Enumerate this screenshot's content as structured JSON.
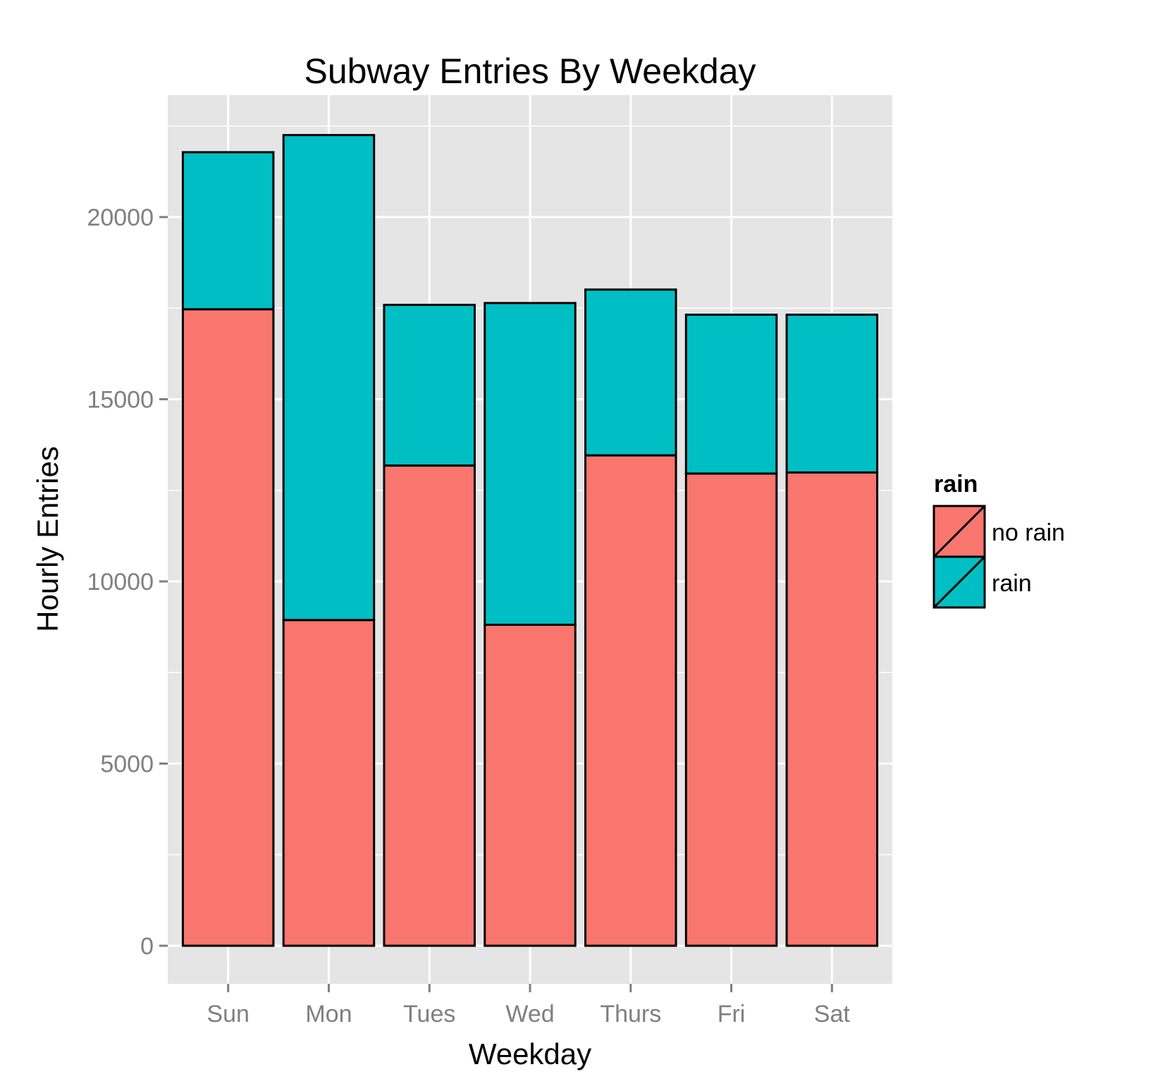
{
  "chart_data": {
    "type": "bar",
    "stacked": true,
    "title": "Subway Entries By Weekday",
    "xlabel": "Weekday",
    "ylabel": "Hourly Entries",
    "categories": [
      "Sun",
      "Mon",
      "Tues",
      "Wed",
      "Thurs",
      "Fri",
      "Sat"
    ],
    "series": [
      {
        "name": "no rain",
        "color": "#F8766D",
        "values": [
          17470,
          8940,
          13180,
          8810,
          13460,
          12960,
          12990
        ]
      },
      {
        "name": "rain",
        "color": "#00BFC4",
        "values": [
          4310,
          13310,
          4410,
          8830,
          4550,
          4360,
          4330
        ]
      }
    ],
    "ylim": [
      -1100,
      23300
    ],
    "yticks": [
      0,
      5000,
      10000,
      15000,
      20000
    ],
    "grid": true,
    "legend": {
      "title": "rain",
      "position": "right"
    },
    "colors": {
      "panel": "#E5E5E5",
      "grid": "#FFFFFF",
      "tick_text": "#7F7F7F"
    }
  }
}
